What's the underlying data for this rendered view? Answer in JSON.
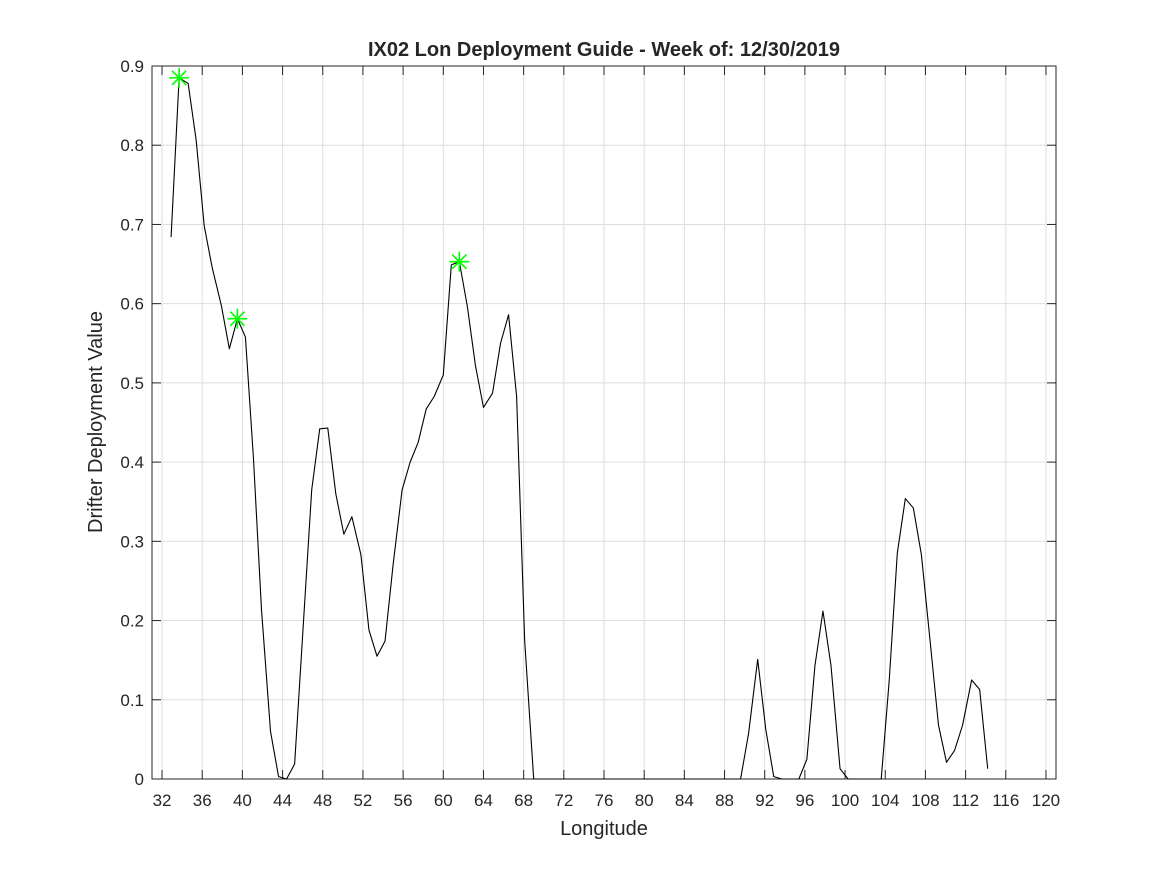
{
  "chart_data": {
    "type": "line",
    "title": "IX02 Lon Deployment Guide - Week of: 12/30/2019",
    "xlabel": "Longitude",
    "ylabel": "Drifter Deployment Value",
    "xlim": [
      31,
      121
    ],
    "ylim": [
      0,
      0.9
    ],
    "grid": true,
    "x_ticks": [
      32,
      36,
      40,
      44,
      48,
      52,
      56,
      60,
      64,
      68,
      72,
      76,
      80,
      84,
      88,
      92,
      96,
      100,
      104,
      108,
      112,
      116,
      120
    ],
    "x_tick_labels": [
      "32",
      "36",
      "40",
      "44",
      "48",
      "52",
      "56",
      "60",
      "64",
      "68",
      "72",
      "76",
      "80",
      "84",
      "88",
      "92",
      "96",
      "100",
      "104",
      "108",
      "112",
      "116",
      "120"
    ],
    "y_ticks": [
      0,
      0.1,
      0.2,
      0.3,
      0.4,
      0.5,
      0.6,
      0.7,
      0.8,
      0.9
    ],
    "y_tick_labels": [
      "0",
      "0.1",
      "0.2",
      "0.3",
      "0.4",
      "0.5",
      "0.6",
      "0.7",
      "0.8",
      "0.9"
    ],
    "series": [
      {
        "color": "#000000",
        "x": [
          32.9,
          33.7,
          34.6,
          35.4,
          36.2,
          37.0,
          37.9,
          38.7,
          39.5,
          40.3,
          41.1,
          41.9,
          42.8,
          43.6,
          44.4,
          45.2,
          46.0,
          46.9,
          47.7,
          48.5,
          49.3,
          50.1,
          50.9,
          51.8,
          52.6,
          53.4,
          54.2,
          55.0,
          55.9,
          56.7,
          57.5,
          58.3,
          59.1,
          60.0,
          60.8,
          61.6,
          62.4,
          63.2,
          64.0,
          64.9,
          65.7,
          66.5,
          67.3,
          68.1,
          69.0,
          69.8,
          70.6,
          89.6,
          90.4,
          91.3,
          92.1,
          92.9,
          93.7,
          94.5,
          95.4,
          96.2,
          97.0,
          97.8,
          98.6,
          99.5,
          100.3,
          101.1,
          101.9,
          102.7,
          103.6,
          104.4,
          105.2,
          106.0,
          106.8,
          107.6,
          108.5,
          109.3,
          110.1,
          110.9,
          111.7,
          112.6,
          113.4,
          114.2
        ],
        "y": [
          0.684,
          0.885,
          0.878,
          0.806,
          0.698,
          0.645,
          0.598,
          0.543,
          0.581,
          0.558,
          0.405,
          0.214,
          0.06,
          0.003,
          0.0,
          0.019,
          0.182,
          0.365,
          0.442,
          0.443,
          0.36,
          0.309,
          0.331,
          0.283,
          0.188,
          0.155,
          0.174,
          0.27,
          0.365,
          0.4,
          0.425,
          0.467,
          0.483,
          0.51,
          0.649,
          0.653,
          0.596,
          0.522,
          0.469,
          0.487,
          0.55,
          0.586,
          0.483,
          0.175,
          0.0,
          0.0,
          0.0,
          0.0,
          0.058,
          0.151,
          0.063,
          0.003,
          0.0,
          0.0,
          0.0,
          0.025,
          0.143,
          0.212,
          0.143,
          0.013,
          0.0,
          0.0,
          0.0,
          0.0,
          0.0,
          0.125,
          0.285,
          0.354,
          0.342,
          0.283,
          0.17,
          0.068,
          0.021,
          0.036,
          0.068,
          0.125,
          0.113,
          0.013
        ]
      }
    ],
    "markers": {
      "symbol": "asterisk",
      "color": "#00ff00",
      "points": [
        {
          "x": 33.7,
          "y": 0.885
        },
        {
          "x": 39.5,
          "y": 0.581
        },
        {
          "x": 61.6,
          "y": 0.653
        }
      ]
    }
  }
}
